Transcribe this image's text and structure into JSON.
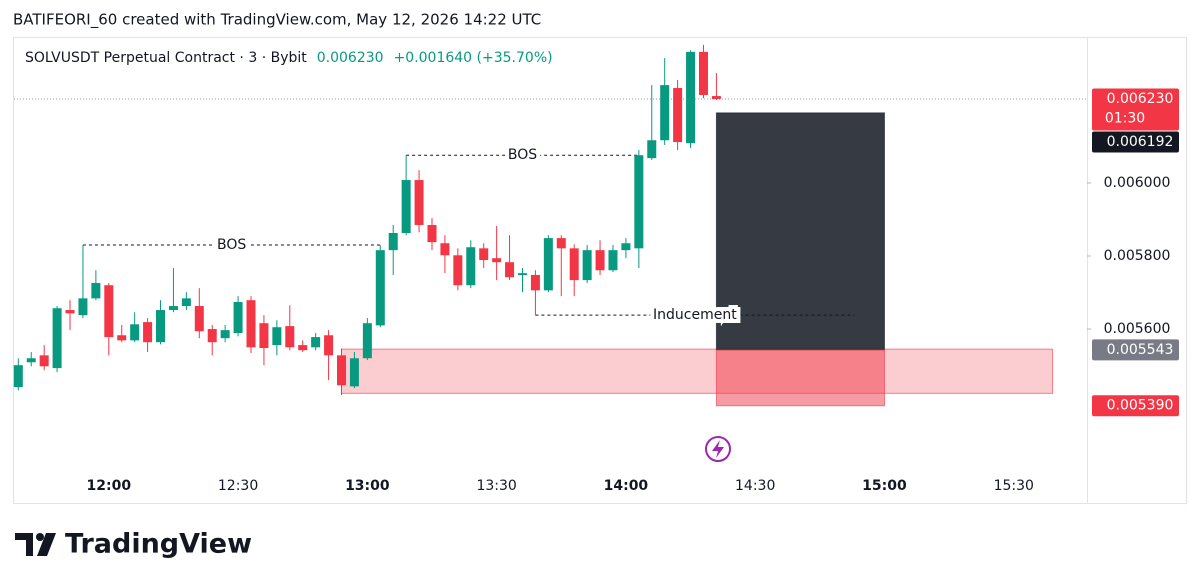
{
  "header": {
    "credit": "BATIFEORI_60 created with TradingView.com, May 12, 2026 14:22 UTC"
  },
  "chart_data": {
    "type": "candlestick",
    "symbol": "SOLVUSDT Perpetual Contract · 3 · Bybit",
    "last_price": "0.006230",
    "change": "+0.001640 (+35.70%)",
    "up_color": "#089981",
    "down_color": "#f23645",
    "x": [
      "11:39",
      "11:42",
      "11:45",
      "11:48",
      "11:51",
      "11:54",
      "11:57",
      "12:00",
      "12:03",
      "12:06",
      "12:09",
      "12:12",
      "12:15",
      "12:18",
      "12:21",
      "12:24",
      "12:27",
      "12:30",
      "12:33",
      "12:36",
      "12:39",
      "12:42",
      "12:45",
      "12:48",
      "12:51",
      "12:54",
      "12:57",
      "13:00",
      "13:03",
      "13:06",
      "13:09",
      "13:12",
      "13:15",
      "13:18",
      "13:21",
      "13:24",
      "13:27",
      "13:30",
      "13:33",
      "13:36",
      "13:39",
      "13:42",
      "13:45",
      "13:48",
      "13:51",
      "13:54",
      "13:57",
      "14:00",
      "14:03",
      "14:06",
      "14:09",
      "14:12",
      "14:15",
      "14:18",
      "14:21"
    ],
    "open": [
      0.005441,
      0.005509,
      0.005528,
      0.005493,
      0.005652,
      0.005638,
      0.005684,
      0.00572,
      0.005583,
      0.005569,
      0.005619,
      0.005564,
      0.005652,
      0.005663,
      0.005663,
      0.0056,
      0.005575,
      0.005589,
      0.005679,
      0.005616,
      0.005556,
      0.005608,
      0.005556,
      0.00555,
      0.005583,
      0.005528,
      0.005443,
      0.00552,
      0.00561,
      0.005816,
      0.005863,
      0.006008,
      0.005885,
      0.005835,
      0.005802,
      0.00572,
      0.005821,
      0.005794,
      0.005783,
      0.005748,
      0.005748,
      0.005706,
      0.005849,
      0.005821,
      0.005734,
      0.005816,
      0.005761,
      0.005816,
      0.005821,
      0.006068,
      0.006117,
      0.00626,
      0.006109,
      0.006359,
      0.006238
    ],
    "high": [
      0.00552,
      0.005537,
      0.005556,
      0.005663,
      0.005679,
      0.00583,
      0.005761,
      0.005726,
      0.005611,
      0.005646,
      0.00563,
      0.005679,
      0.005767,
      0.005701,
      0.005712,
      0.005611,
      0.005611,
      0.00569,
      0.00569,
      0.005638,
      0.005624,
      0.005665,
      0.005569,
      0.005589,
      0.005597,
      0.005547,
      0.005537,
      0.00563,
      0.00583,
      0.005885,
      0.006076,
      0.006035,
      0.005904,
      0.005857,
      0.005821,
      0.005843,
      0.005835,
      0.005882,
      0.005857,
      0.005767,
      0.005761,
      0.005857,
      0.005857,
      0.005832,
      0.00583,
      0.005843,
      0.00583,
      0.005849,
      0.00609,
      0.006268,
      0.006342,
      0.006282,
      0.006364,
      0.006378,
      0.006301
    ],
    "low": [
      0.005432,
      0.005498,
      0.005487,
      0.005482,
      0.005597,
      0.00563,
      0.005679,
      0.005528,
      0.005564,
      0.005564,
      0.005537,
      0.005558,
      0.005646,
      0.005652,
      0.005575,
      0.005528,
      0.005564,
      0.00558,
      0.005534,
      0.005501,
      0.005528,
      0.005542,
      0.005537,
      0.005542,
      0.00546,
      0.005419,
      0.005438,
      0.005515,
      0.005605,
      0.005748,
      0.005857,
      0.005865,
      0.005816,
      0.005753,
      0.005706,
      0.005712,
      0.005767,
      0.005734,
      0.005734,
      0.005701,
      0.005638,
      0.005701,
      0.00569,
      0.00569,
      0.005726,
      0.005748,
      0.005756,
      0.005794,
      0.005767,
      0.006063,
      0.006104,
      0.00609,
      0.006096,
      0.006232,
      0.006227
    ],
    "close": [
      0.005501,
      0.00552,
      0.005498,
      0.005657,
      0.005643,
      0.005684,
      0.005726,
      0.005578,
      0.005569,
      0.005613,
      0.005564,
      0.005652,
      0.005663,
      0.005684,
      0.005594,
      0.005564,
      0.005597,
      0.005674,
      0.00555,
      0.005548,
      0.005605,
      0.00555,
      0.005542,
      0.005578,
      0.005528,
      0.005446,
      0.00552,
      0.005616,
      0.005816,
      0.005863,
      0.006008,
      0.005885,
      0.005838,
      0.005802,
      0.00572,
      0.005824,
      0.005789,
      0.005783,
      0.005742,
      0.005753,
      0.005706,
      0.005849,
      0.005821,
      0.005734,
      0.005816,
      0.005761,
      0.005816,
      0.005835,
      0.006076,
      0.006117,
      0.006268,
      0.006112,
      0.006359,
      0.006241,
      0.00623
    ],
    "xlim": [
      "11:38",
      "15:47"
    ],
    "xticks": [
      "12:00",
      "12:30",
      "13:00",
      "13:30",
      "14:00",
      "14:30",
      "15:00",
      "15:30"
    ],
    "ylim": [
      0.005214,
      0.006397
    ],
    "yticks": [
      {
        "value": 0.0056,
        "label": "0.005600"
      },
      {
        "value": 0.0058,
        "label": "0.005800"
      },
      {
        "value": 0.006,
        "label": "0.006000"
      }
    ],
    "price_labels": [
      {
        "value": 0.00623,
        "label": "0.006230",
        "sublabel": "01:30",
        "color": "#f23645"
      },
      {
        "value": 0.006192,
        "label": "0.006192",
        "color": "#131722"
      },
      {
        "value": 0.005543,
        "label": "0.005543",
        "color": "#787b86"
      },
      {
        "value": 0.00539,
        "label": "0.005390",
        "color": "#f23645"
      }
    ],
    "annotations": [
      {
        "label": "BOS",
        "price": 0.00583,
        "start": "11:54",
        "end": "13:03"
      },
      {
        "label": "BOS",
        "price": 0.006076,
        "start": "13:09",
        "end": "14:03"
      },
      {
        "label": "Inducement",
        "price": 0.005638,
        "start": "13:39",
        "end": "14:53"
      }
    ],
    "zones": [
      {
        "top": 0.005545,
        "bottom": 0.005424,
        "start": "12:54",
        "end": "15:39",
        "color": "rgba(242,54,69,0.25)"
      },
      {
        "top": 0.006192,
        "bottom": 0.005543,
        "start": "14:21",
        "end": "15:00",
        "color": "rgba(19,23,34,0.85)"
      },
      {
        "top": 0.005543,
        "bottom": 0.00539,
        "start": "14:21",
        "end": "15:00",
        "color": "rgba(242,54,69,0.5)"
      }
    ]
  },
  "footer": {
    "brand": "TradingView"
  }
}
